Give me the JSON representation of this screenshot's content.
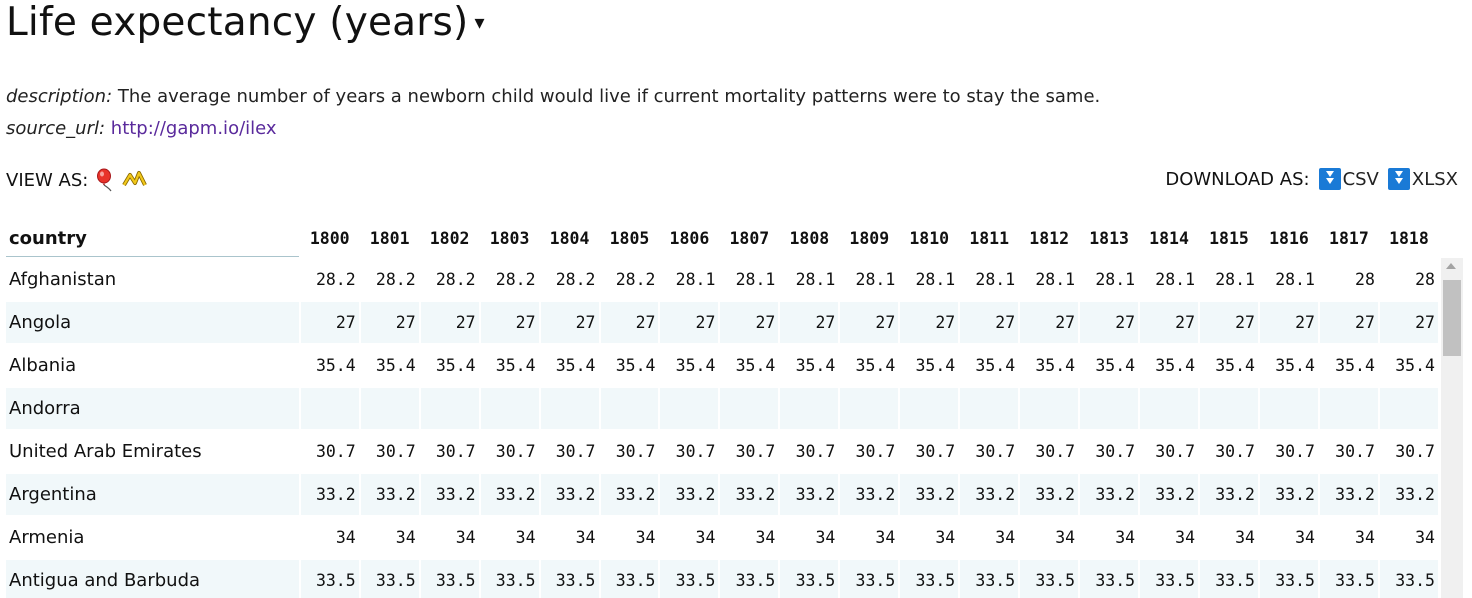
{
  "title": "Life expectancy (years)",
  "title_caret": "▾",
  "description_key": "description:",
  "description": "The average number of years a newborn child would live if current mortality patterns were to stay the same.",
  "source_key": "source_url:",
  "source_url": "http://gapm.io/ilex",
  "view_as_label": "VIEW AS:",
  "view_icons": [
    "balloon-icon",
    "line-chart-icon"
  ],
  "download_as_label": "DOWNLOAD AS:",
  "download_options": [
    "CSV",
    "XLSX"
  ],
  "colors": {
    "link": "#5a2a9c",
    "download_button": "#1a7ad6",
    "alt_row": "#f1f8fa"
  },
  "table": {
    "country_header": "country",
    "years": [
      "1800",
      "1801",
      "1802",
      "1803",
      "1804",
      "1805",
      "1806",
      "1807",
      "1808",
      "1809",
      "1810",
      "1811",
      "1812",
      "1813",
      "1814",
      "1815",
      "1816",
      "1817",
      "1818"
    ],
    "rows": [
      {
        "country": "Afghanistan",
        "values": [
          "28.2",
          "28.2",
          "28.2",
          "28.2",
          "28.2",
          "28.2",
          "28.1",
          "28.1",
          "28.1",
          "28.1",
          "28.1",
          "28.1",
          "28.1",
          "28.1",
          "28.1",
          "28.1",
          "28.1",
          "28",
          "28"
        ]
      },
      {
        "country": "Angola",
        "values": [
          "27",
          "27",
          "27",
          "27",
          "27",
          "27",
          "27",
          "27",
          "27",
          "27",
          "27",
          "27",
          "27",
          "27",
          "27",
          "27",
          "27",
          "27",
          "27"
        ]
      },
      {
        "country": "Albania",
        "values": [
          "35.4",
          "35.4",
          "35.4",
          "35.4",
          "35.4",
          "35.4",
          "35.4",
          "35.4",
          "35.4",
          "35.4",
          "35.4",
          "35.4",
          "35.4",
          "35.4",
          "35.4",
          "35.4",
          "35.4",
          "35.4",
          "35.4"
        ]
      },
      {
        "country": "Andorra",
        "values": [
          "",
          "",
          "",
          "",
          "",
          "",
          "",
          "",
          "",
          "",
          "",
          "",
          "",
          "",
          "",
          "",
          "",
          "",
          ""
        ]
      },
      {
        "country": "United Arab Emirates",
        "values": [
          "30.7",
          "30.7",
          "30.7",
          "30.7",
          "30.7",
          "30.7",
          "30.7",
          "30.7",
          "30.7",
          "30.7",
          "30.7",
          "30.7",
          "30.7",
          "30.7",
          "30.7",
          "30.7",
          "30.7",
          "30.7",
          "30.7"
        ]
      },
      {
        "country": "Argentina",
        "values": [
          "33.2",
          "33.2",
          "33.2",
          "33.2",
          "33.2",
          "33.2",
          "33.2",
          "33.2",
          "33.2",
          "33.2",
          "33.2",
          "33.2",
          "33.2",
          "33.2",
          "33.2",
          "33.2",
          "33.2",
          "33.2",
          "33.2"
        ]
      },
      {
        "country": "Armenia",
        "values": [
          "34",
          "34",
          "34",
          "34",
          "34",
          "34",
          "34",
          "34",
          "34",
          "34",
          "34",
          "34",
          "34",
          "34",
          "34",
          "34",
          "34",
          "34",
          "34"
        ]
      },
      {
        "country": "Antigua and Barbuda",
        "values": [
          "33.5",
          "33.5",
          "33.5",
          "33.5",
          "33.5",
          "33.5",
          "33.5",
          "33.5",
          "33.5",
          "33.5",
          "33.5",
          "33.5",
          "33.5",
          "33.5",
          "33.5",
          "33.5",
          "33.5",
          "33.5",
          "33.5"
        ]
      }
    ]
  }
}
